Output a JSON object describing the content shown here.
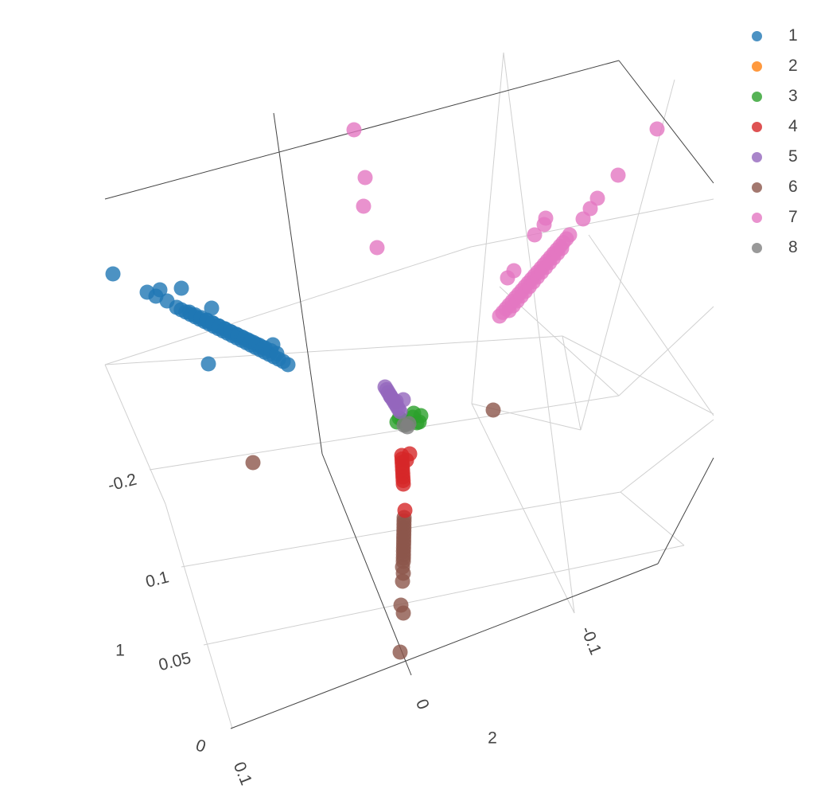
{
  "chart_data": {
    "type": "scatter3d",
    "title": "",
    "axes": {
      "y_ticks": [
        "0",
        "0.05",
        "0.1"
      ],
      "x_ticks": [
        "0.1",
        "0",
        "-0.1",
        "-0.2"
      ],
      "z_ticks": [
        "1",
        "2"
      ]
    },
    "legend": {
      "position": "top-right"
    },
    "series": [
      {
        "name": "1",
        "color": "#1f77b4"
      },
      {
        "name": "2",
        "color": "#ff7f0e"
      },
      {
        "name": "3",
        "color": "#2ca02c"
      },
      {
        "name": "4",
        "color": "#d62728"
      },
      {
        "name": "5",
        "color": "#9467bd"
      },
      {
        "name": "6",
        "color": "#8c564b"
      },
      {
        "name": "7",
        "color": "#e377c2"
      },
      {
        "name": "8",
        "color": "#7f7f7f"
      }
    ]
  }
}
